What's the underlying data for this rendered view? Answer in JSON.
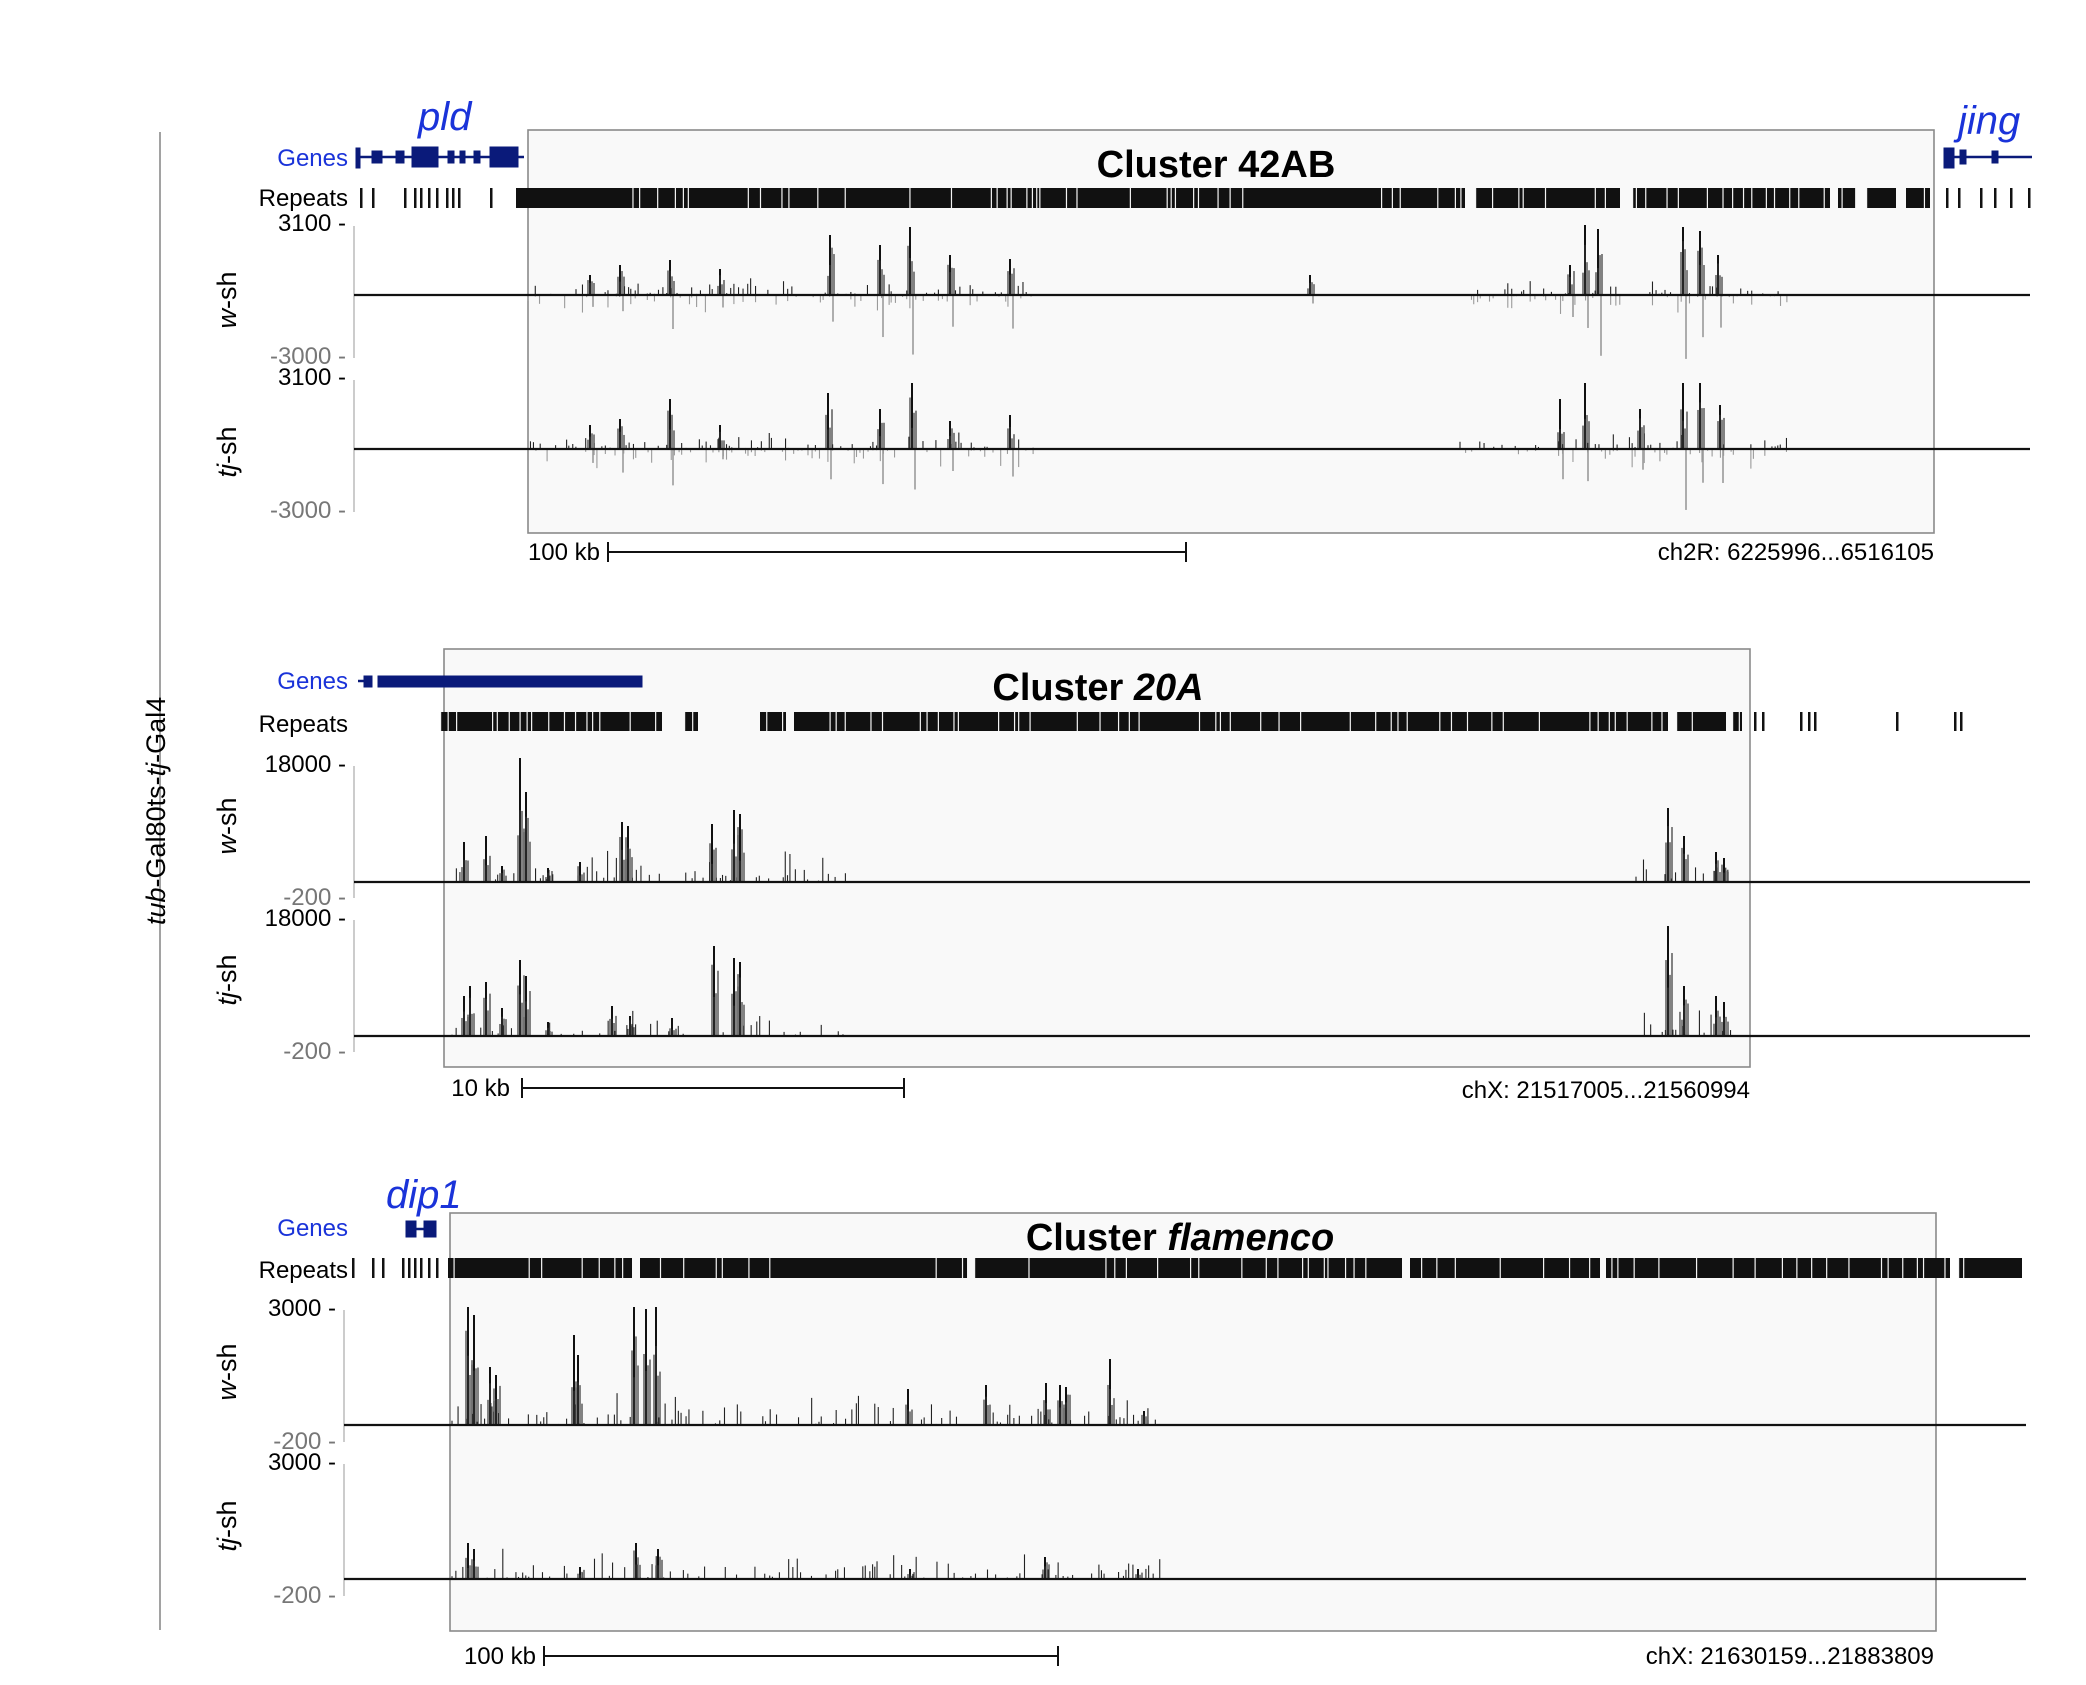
{
  "figure": {
    "side_label_italic": "tub",
    "side_label_rest": "-Gal80ts-",
    "side_label_italic2": "tj",
    "side_label_rest2": "-Gal4"
  },
  "panels": [
    {
      "id": "42AB",
      "title_plain": "Cluster 42AB",
      "title_italic": "",
      "genes_label": "Genes",
      "repeats_label": "Repeats",
      "gene_names": [
        {
          "name": "pld"
        },
        {
          "name": "jing"
        }
      ],
      "tracks": [
        {
          "label": "w-sh",
          "ymax_label": "3100 -",
          "ymin_label": "-3000 -",
          "ymax": 3100,
          "ymin": -3000
        },
        {
          "label": "tj-sh",
          "ymax_label": "3100 -",
          "ymin_label": "-3000 -",
          "ymax": 3100,
          "ymin": -3000
        }
      ],
      "scalebar_label": "100 kb",
      "coords": "ch2R: 6225996...6516105"
    },
    {
      "id": "20A",
      "title_plain": "Cluster ",
      "title_italic": "20A",
      "genes_label": "Genes",
      "repeats_label": "Repeats",
      "gene_names": [],
      "tracks": [
        {
          "label": "w-sh",
          "ymax_label": "18000 -",
          "ymin_label": "-200 -",
          "ymax": 18000,
          "ymin": -200
        },
        {
          "label": "tj-sh",
          "ymax_label": "18000 -",
          "ymin_label": "-200 -",
          "ymax": 18000,
          "ymin": -200
        }
      ],
      "scalebar_label": "10 kb",
      "coords": "chX: 21517005...21560994"
    },
    {
      "id": "flamenco",
      "title_plain": "Cluster ",
      "title_italic": "flamenco",
      "genes_label": "Genes",
      "repeats_label": "Repeats",
      "gene_names": [
        {
          "name": "dip1"
        }
      ],
      "tracks": [
        {
          "label": "w-sh",
          "ymax_label": "3000 -",
          "ymin_label": "-200 -",
          "ymax": 3000,
          "ymin": -200
        },
        {
          "label": "tj-sh",
          "ymax_label": "3000 -",
          "ymin_label": "-200 -",
          "ymax": 3000,
          "ymin": -200
        }
      ],
      "scalebar_label": "100 kb",
      "coords": "chX: 21630159...21883809"
    }
  ],
  "colors": {
    "gene": "#0a1a7a",
    "gene_label": "#1a33d9",
    "signal_pos": "#111111",
    "signal_neg": "#9a9a9a",
    "axis_min_label": "#777777"
  }
}
